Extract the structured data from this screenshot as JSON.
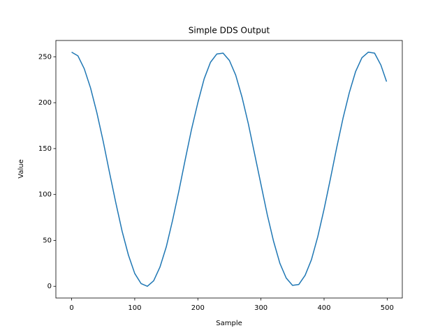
{
  "chart_data": {
    "type": "line",
    "title": "Simple DDS Output",
    "x_label": "Sample",
    "y_label": "Value",
    "x": [
      0,
      10,
      20,
      30,
      40,
      50,
      60,
      70,
      80,
      90,
      100,
      110,
      120,
      130,
      140,
      150,
      160,
      170,
      180,
      190,
      200,
      210,
      220,
      230,
      240,
      250,
      260,
      270,
      280,
      290,
      300,
      310,
      320,
      330,
      340,
      350,
      360,
      370,
      380,
      390,
      400,
      410,
      420,
      430,
      440,
      450,
      460,
      470,
      480,
      490,
      499
    ],
    "series": [
      {
        "color": "#1f77b4",
        "values": [
          255,
          251,
          237,
          216,
          189,
          158,
          124,
          91,
          60,
          34,
          14,
          3,
          0,
          6,
          21,
          43,
          72,
          104,
          138,
          171,
          200,
          226,
          244,
          253,
          254,
          246,
          230,
          206,
          177,
          144,
          111,
          78,
          49,
          25,
          9,
          1,
          2,
          12,
          29,
          54,
          84,
          117,
          151,
          183,
          211,
          234,
          249,
          255,
          254,
          241,
          223
        ]
      }
    ],
    "xlim": [
      -24.95,
      523.95
    ],
    "xticks": [
      0,
      100,
      200,
      300,
      400,
      500
    ],
    "ylim": [
      -12.75,
      267.75
    ],
    "yticks": [
      0,
      50,
      100,
      150,
      200,
      250
    ],
    "grid": false
  }
}
